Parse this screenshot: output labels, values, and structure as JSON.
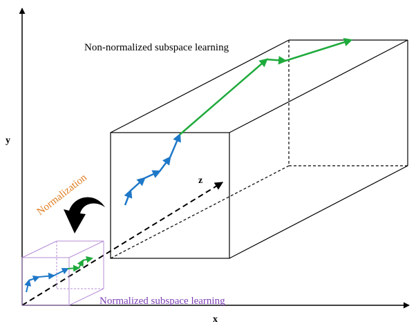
{
  "labels": {
    "non_normalized": "Non-normalized subspace learning",
    "normalized": "Normalized subspace learning",
    "normalization": "Normalization",
    "axis_x": "x",
    "axis_y": "y",
    "axis_z": "z"
  },
  "colors": {
    "axes": "#000000",
    "big_box": "#000000",
    "small_box": "#b58cd6",
    "normalized_label": "#7b3fb5",
    "normalization_label": "#e07b1d",
    "blue_path": "#1e78c8",
    "green_path": "#1faa3c"
  },
  "icons": {
    "curved_arrow": "curved-arrow-icon"
  }
}
